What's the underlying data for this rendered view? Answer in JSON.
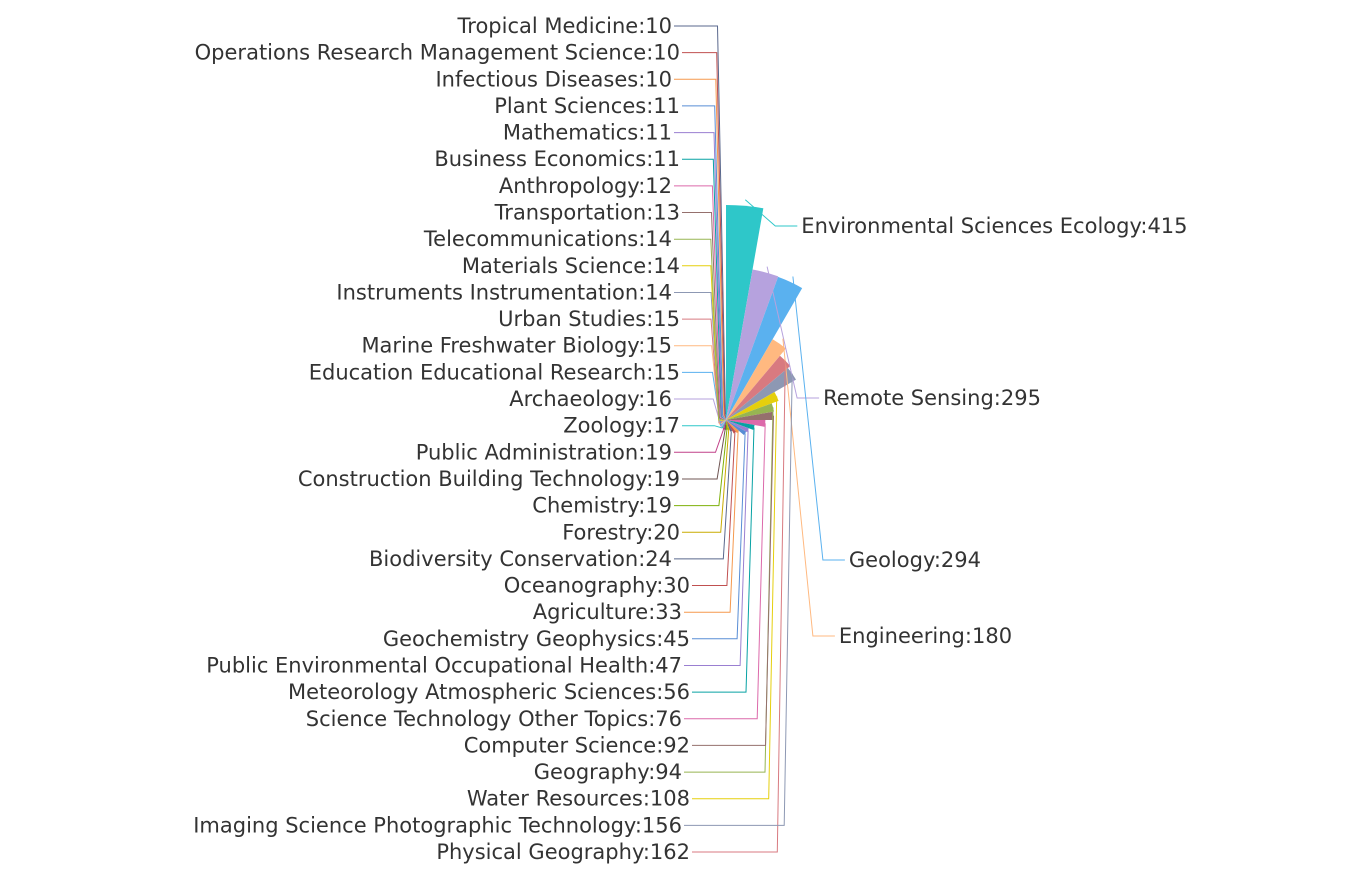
{
  "chart_data": {
    "type": "pie",
    "variant": "rose-radius",
    "start_angle_deg": 90,
    "direction": "clockwise",
    "label_separator": ":",
    "series": [
      {
        "name": "Environmental Sciences Ecology",
        "value": 415,
        "color": "#2ec7c9"
      },
      {
        "name": "Remote Sensing",
        "value": 295,
        "color": "#b6a2de"
      },
      {
        "name": "Geology",
        "value": 294,
        "color": "#5ab1ef"
      },
      {
        "name": "Engineering",
        "value": 180,
        "color": "#ffb980"
      },
      {
        "name": "Physical Geography",
        "value": 162,
        "color": "#d87a80"
      },
      {
        "name": "Imaging Science Photographic Technology",
        "value": 156,
        "color": "#8d98b3"
      },
      {
        "name": "Water Resources",
        "value": 108,
        "color": "#e5cf0d"
      },
      {
        "name": "Geography",
        "value": 94,
        "color": "#97b552"
      },
      {
        "name": "Computer Science",
        "value": 92,
        "color": "#95706d"
      },
      {
        "name": "Science Technology Other Topics",
        "value": 76,
        "color": "#dc69aa"
      },
      {
        "name": "Meteorology Atmospheric Sciences",
        "value": 56,
        "color": "#07a2a4"
      },
      {
        "name": "Public Environmental Occupational Health",
        "value": 47,
        "color": "#9a7fd1"
      },
      {
        "name": "Geochemistry Geophysics",
        "value": 45,
        "color": "#588dd5"
      },
      {
        "name": "Agriculture",
        "value": 33,
        "color": "#f5994e"
      },
      {
        "name": "Oceanography",
        "value": 30,
        "color": "#c05050"
      },
      {
        "name": "Biodiversity Conservation",
        "value": 24,
        "color": "#59678c"
      },
      {
        "name": "Forestry",
        "value": 20,
        "color": "#c9ab00"
      },
      {
        "name": "Chemistry",
        "value": 19,
        "color": "#7eb00a"
      },
      {
        "name": "Construction Building Technology",
        "value": 19,
        "color": "#6f5553"
      },
      {
        "name": "Public Administration",
        "value": 19,
        "color": "#c14089"
      },
      {
        "name": "Zoology",
        "value": 17,
        "color": "#2ec7c9"
      },
      {
        "name": "Archaeology",
        "value": 16,
        "color": "#b6a2de"
      },
      {
        "name": "Education Educational Research",
        "value": 15,
        "color": "#5ab1ef"
      },
      {
        "name": "Marine Freshwater Biology",
        "value": 15,
        "color": "#ffb980"
      },
      {
        "name": "Urban Studies",
        "value": 15,
        "color": "#d87a80"
      },
      {
        "name": "Instruments Instrumentation",
        "value": 14,
        "color": "#8d98b3"
      },
      {
        "name": "Materials Science",
        "value": 14,
        "color": "#e5cf0d"
      },
      {
        "name": "Telecommunications",
        "value": 14,
        "color": "#97b552"
      },
      {
        "name": "Transportation",
        "value": 13,
        "color": "#95706d"
      },
      {
        "name": "Anthropology",
        "value": 12,
        "color": "#dc69aa"
      },
      {
        "name": "Business Economics",
        "value": 11,
        "color": "#07a2a4"
      },
      {
        "name": "Mathematics",
        "value": 11,
        "color": "#9a7fd1"
      },
      {
        "name": "Plant Sciences",
        "value": 11,
        "color": "#588dd5"
      },
      {
        "name": "Infectious Diseases",
        "value": 10,
        "color": "#f5994e"
      },
      {
        "name": "Operations Research Management Science",
        "value": 10,
        "color": "#c05050"
      },
      {
        "name": "Tropical Medicine",
        "value": 10,
        "color": "#59678c"
      }
    ]
  }
}
